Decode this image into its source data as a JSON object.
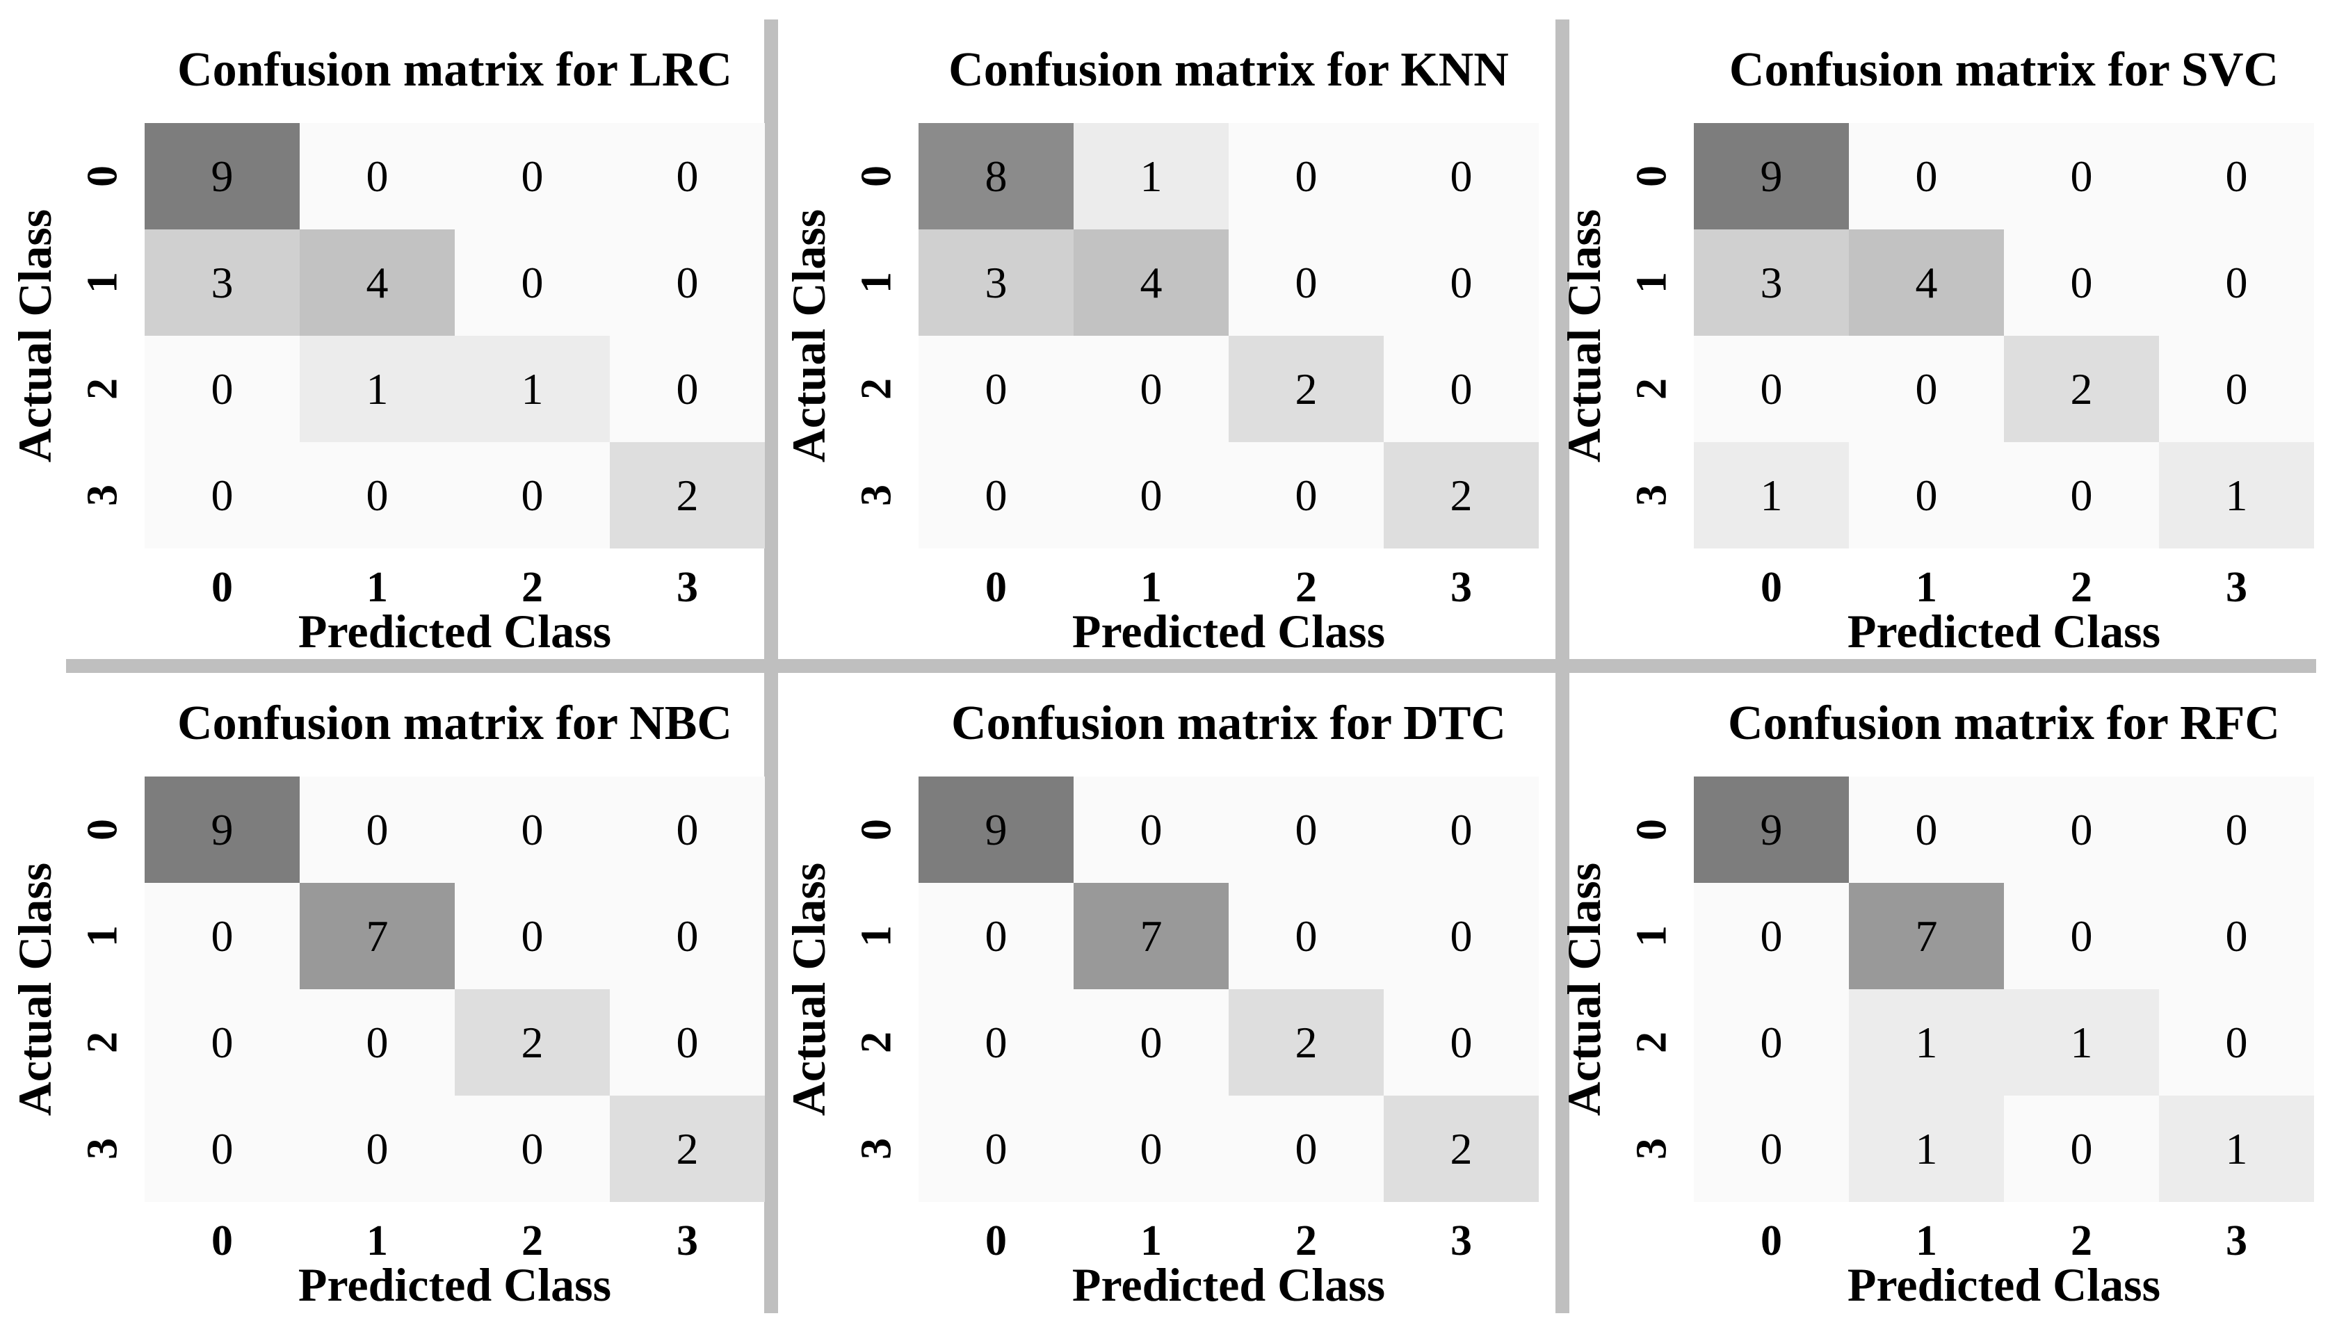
{
  "figure": {
    "background": "#ffffff",
    "divider_color": "#bfbfbf",
    "text_color": "#000000",
    "cmap_low": "#fafafa",
    "cmap_high": "#7d7d7d",
    "cmap_max": 9
  },
  "chart_data": [
    {
      "type": "heatmap",
      "model": "LRC",
      "title": "Confusion matrix for LRC",
      "xlabel": "Predicted Class",
      "ylabel": "Actual Class",
      "x_ticks": [
        "0",
        "1",
        "2",
        "3"
      ],
      "y_ticks": [
        "0",
        "1",
        "2",
        "3"
      ],
      "matrix": [
        [
          9,
          0,
          0,
          0
        ],
        [
          3,
          4,
          0,
          0
        ],
        [
          0,
          1,
          1,
          0
        ],
        [
          0,
          0,
          0,
          2
        ]
      ]
    },
    {
      "type": "heatmap",
      "model": "KNN",
      "title": "Confusion matrix for KNN",
      "xlabel": "Predicted Class",
      "ylabel": "Actual Class",
      "x_ticks": [
        "0",
        "1",
        "2",
        "3"
      ],
      "y_ticks": [
        "0",
        "1",
        "2",
        "3"
      ],
      "matrix": [
        [
          8,
          1,
          0,
          0
        ],
        [
          3,
          4,
          0,
          0
        ],
        [
          0,
          0,
          2,
          0
        ],
        [
          0,
          0,
          0,
          2
        ]
      ]
    },
    {
      "type": "heatmap",
      "model": "SVC",
      "title": "Confusion matrix for SVC",
      "xlabel": "Predicted Class",
      "ylabel": "Actual Class",
      "x_ticks": [
        "0",
        "1",
        "2",
        "3"
      ],
      "y_ticks": [
        "0",
        "1",
        "2",
        "3"
      ],
      "matrix": [
        [
          9,
          0,
          0,
          0
        ],
        [
          3,
          4,
          0,
          0
        ],
        [
          0,
          0,
          2,
          0
        ],
        [
          1,
          0,
          0,
          1
        ]
      ]
    },
    {
      "type": "heatmap",
      "model": "NBC",
      "title": "Confusion matrix for NBC",
      "xlabel": "Predicted Class",
      "ylabel": "Actual Class",
      "x_ticks": [
        "0",
        "1",
        "2",
        "3"
      ],
      "y_ticks": [
        "0",
        "1",
        "2",
        "3"
      ],
      "matrix": [
        [
          9,
          0,
          0,
          0
        ],
        [
          0,
          7,
          0,
          0
        ],
        [
          0,
          0,
          2,
          0
        ],
        [
          0,
          0,
          0,
          2
        ]
      ]
    },
    {
      "type": "heatmap",
      "model": "DTC",
      "title": "Confusion matrix for DTC",
      "xlabel": "Predicted Class",
      "ylabel": "Actual Class",
      "x_ticks": [
        "0",
        "1",
        "2",
        "3"
      ],
      "y_ticks": [
        "0",
        "1",
        "2",
        "3"
      ],
      "matrix": [
        [
          9,
          0,
          0,
          0
        ],
        [
          0,
          7,
          0,
          0
        ],
        [
          0,
          0,
          2,
          0
        ],
        [
          0,
          0,
          0,
          2
        ]
      ]
    },
    {
      "type": "heatmap",
      "model": "RFC",
      "title": "Confusion matrix for RFC",
      "xlabel": "Predicted Class",
      "ylabel": "Actual Class",
      "x_ticks": [
        "0",
        "1",
        "2",
        "3"
      ],
      "y_ticks": [
        "0",
        "1",
        "2",
        "3"
      ],
      "matrix": [
        [
          9,
          0,
          0,
          0
        ],
        [
          0,
          7,
          0,
          0
        ],
        [
          0,
          1,
          1,
          0
        ],
        [
          0,
          1,
          0,
          1
        ]
      ]
    }
  ]
}
